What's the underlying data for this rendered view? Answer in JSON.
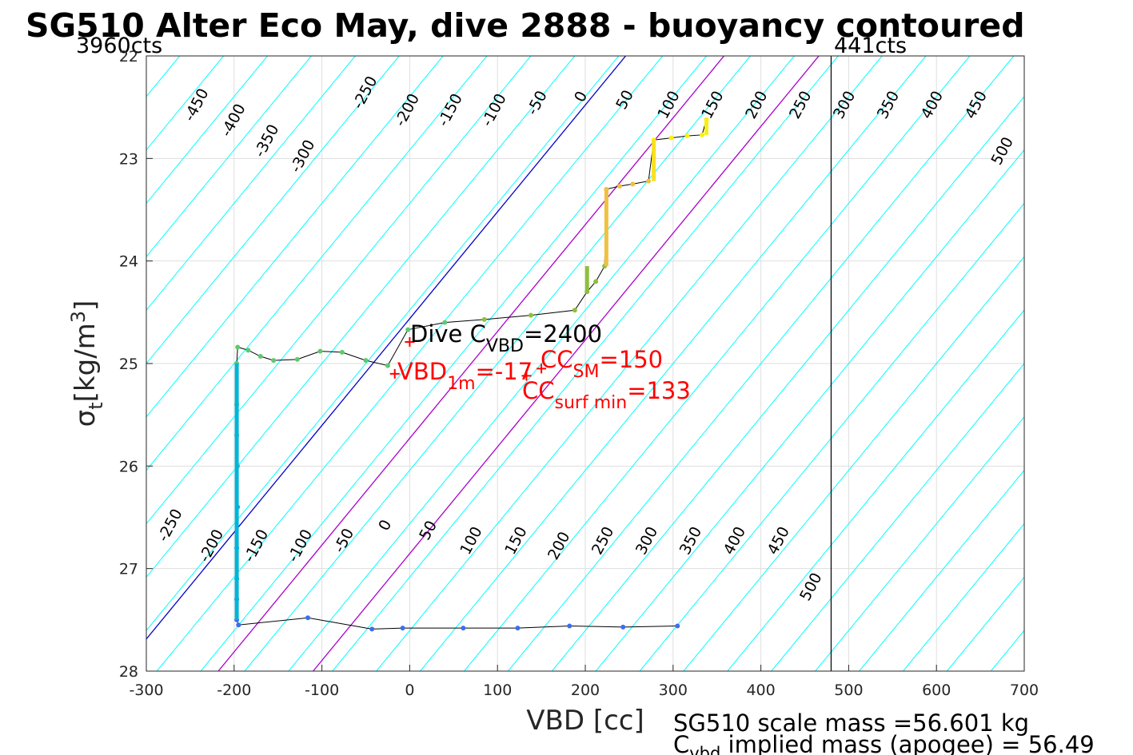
{
  "title": "SG510 Alter Eco May, dive 2888 - buoyancy contoured",
  "chart_data": {
    "type": "line",
    "xlabel": "VBD [cc]",
    "ylabel_main": "σ",
    "ylabel_sub": "t",
    "ylabel_unit_pre": "[kg/m",
    "ylabel_unit_sup": "3",
    "ylabel_unit_post": "]",
    "xlim": [
      -300,
      700
    ],
    "ylim": [
      22,
      28
    ],
    "y_reversed": true,
    "grid": true,
    "xticks": [
      -300,
      -200,
      -100,
      0,
      100,
      200,
      300,
      400,
      500,
      600,
      700
    ],
    "xtick_labels": [
      "-300",
      "-200",
      "-100",
      "0",
      "100",
      "200",
      "300",
      "400",
      "500",
      "600",
      "700"
    ],
    "yticks": [
      22,
      23,
      24,
      25,
      26,
      27,
      28
    ],
    "ytick_labels": [
      "22",
      "23",
      "24",
      "25",
      "26",
      "27",
      "28"
    ],
    "contours": {
      "slope_cc_per_sigma": -96,
      "colors": {
        "default": "#00ffff",
        "zero": "#0000cc",
        "surf_min": "#aa00cc",
        "sm": "#aa00cc"
      },
      "levels": [
        -500,
        -450,
        -400,
        -350,
        -300,
        -250,
        -200,
        -150,
        -100,
        -50,
        0,
        50,
        100,
        150,
        200,
        250,
        300,
        350,
        400,
        450,
        500
      ],
      "colored_offsets": [
        [
          0,
          "zero"
        ],
        [
          15,
          "surf_min"
        ],
        [
          116,
          "sm"
        ]
      ],
      "upper_labels": [
        {
          "text": "-450",
          "x": -238,
          "y": 22.5
        },
        {
          "text": "-400",
          "x": -196,
          "y": 22.65
        },
        {
          "text": "-350",
          "x": -158,
          "y": 22.85
        },
        {
          "text": "-300",
          "x": -117,
          "y": 23.0
        },
        {
          "text": "-250",
          "x": -46,
          "y": 22.38
        },
        {
          "text": "-200",
          "x": 2,
          "y": 22.55
        },
        {
          "text": "-150",
          "x": 51,
          "y": 22.55
        },
        {
          "text": "-100",
          "x": 101,
          "y": 22.55
        },
        {
          "text": "-50",
          "x": 150,
          "y": 22.48
        },
        {
          "text": "0",
          "x": 200,
          "y": 22.42
        },
        {
          "text": "50",
          "x": 250,
          "y": 22.45
        },
        {
          "text": "100",
          "x": 300,
          "y": 22.5
        },
        {
          "text": "150",
          "x": 350,
          "y": 22.5
        },
        {
          "text": "200",
          "x": 400,
          "y": 22.5
        },
        {
          "text": "250",
          "x": 450,
          "y": 22.5
        },
        {
          "text": "300",
          "x": 500,
          "y": 22.5
        },
        {
          "text": "350",
          "x": 550,
          "y": 22.5
        },
        {
          "text": "400",
          "x": 600,
          "y": 22.5
        },
        {
          "text": "450",
          "x": 650,
          "y": 22.5
        },
        {
          "text": "500",
          "x": 680,
          "y": 22.95
        }
      ],
      "lower_labels": [
        {
          "text": "-250",
          "x": -268,
          "y": 26.6
        },
        {
          "text": "-200",
          "x": -221,
          "y": 26.8
        },
        {
          "text": "-150",
          "x": -170,
          "y": 26.8
        },
        {
          "text": "-100",
          "x": -120,
          "y": 26.8
        },
        {
          "text": "-50",
          "x": -70,
          "y": 26.75
        },
        {
          "text": "0",
          "x": -23,
          "y": 26.6
        },
        {
          "text": "50",
          "x": 26,
          "y": 26.65
        },
        {
          "text": "100",
          "x": 75,
          "y": 26.75
        },
        {
          "text": "150",
          "x": 126,
          "y": 26.75
        },
        {
          "text": "200",
          "x": 175,
          "y": 26.8
        },
        {
          "text": "250",
          "x": 225,
          "y": 26.75
        },
        {
          "text": "300",
          "x": 275,
          "y": 26.75
        },
        {
          "text": "350",
          "x": 325,
          "y": 26.75
        },
        {
          "text": "400",
          "x": 375,
          "y": 26.75
        },
        {
          "text": "450",
          "x": 425,
          "y": 26.75
        },
        {
          "text": "500",
          "x": 462,
          "y": 27.2
        }
      ]
    },
    "dive_profile": [
      {
        "x": 305,
        "y": 27.56
      },
      {
        "x": 243,
        "y": 27.57
      },
      {
        "x": 182,
        "y": 27.56
      },
      {
        "x": 123,
        "y": 27.58
      },
      {
        "x": 61,
        "y": 27.58
      },
      {
        "x": -8,
        "y": 27.58
      },
      {
        "x": -43,
        "y": 27.59
      },
      {
        "x": -116,
        "y": 27.48
      },
      {
        "x": -195,
        "y": 27.55
      },
      {
        "x": -197,
        "y": 27.5
      },
      {
        "x": -197,
        "y": 27.3
      },
      {
        "x": -197,
        "y": 27.1
      },
      {
        "x": -197,
        "y": 26.8
      },
      {
        "x": -196,
        "y": 26.4
      },
      {
        "x": -196,
        "y": 26.0
      },
      {
        "x": -197,
        "y": 25.7
      },
      {
        "x": -197,
        "y": 25.4
      },
      {
        "x": -197,
        "y": 25.0
      },
      {
        "x": -196,
        "y": 24.84
      },
      {
        "x": -184,
        "y": 24.87
      },
      {
        "x": -170,
        "y": 24.93
      },
      {
        "x": -155,
        "y": 24.97
      },
      {
        "x": -128,
        "y": 24.96
      },
      {
        "x": -102,
        "y": 24.88
      },
      {
        "x": -77,
        "y": 24.89
      },
      {
        "x": -50,
        "y": 24.97
      },
      {
        "x": -25,
        "y": 25.02
      },
      {
        "x": -2,
        "y": 24.67
      },
      {
        "x": 40,
        "y": 24.6
      },
      {
        "x": 85,
        "y": 24.57
      },
      {
        "x": 138,
        "y": 24.53
      },
      {
        "x": 188,
        "y": 24.48
      },
      {
        "x": 202,
        "y": 24.3
      },
      {
        "x": 212,
        "y": 24.2
      },
      {
        "x": 222,
        "y": 24.05
      },
      {
        "x": 224,
        "y": 23.3
      },
      {
        "x": 239,
        "y": 23.27
      },
      {
        "x": 254,
        "y": 23.25
      },
      {
        "x": 272,
        "y": 23.22
      },
      {
        "x": 278,
        "y": 22.82
      },
      {
        "x": 298,
        "y": 22.8
      },
      {
        "x": 316,
        "y": 22.78
      },
      {
        "x": 333,
        "y": 22.77
      },
      {
        "x": 338,
        "y": 22.62
      }
    ],
    "climb_profile_colors": [
      "#3b6ef0",
      "#00b4d8",
      "#3cc8a0",
      "#5fc870",
      "#8fbe3c",
      "#f0c040",
      "#f8f010"
    ],
    "markers": [
      {
        "x": 0,
        "y": 24.79,
        "color": "#ff0000"
      },
      {
        "x": -17,
        "y": 25.1,
        "color": "#ff0000"
      },
      {
        "x": 150,
        "y": 25.05,
        "color": "#ff0000"
      },
      {
        "x": 133,
        "y": 25.12,
        "color": "#ff0000"
      }
    ],
    "vertical_line_x": 480,
    "annotations": {
      "dive_cvbd_main": "Dive C",
      "dive_cvbd_sub": "VBD",
      "dive_cvbd_val": "=2400",
      "vbd1m_main": "VBD",
      "vbd1m_sub": "1m",
      "vbd1m_val": "=-17",
      "ccsm_main": "CC",
      "ccsm_sub": "SM",
      "ccsm_val": "=150",
      "ccsurf_main": "CC",
      "ccsurf_sub": "surf min",
      "ccsurf_val": "=133"
    },
    "counts_left": "3960cts",
    "counts_right": "441cts"
  },
  "footer": {
    "scale_mass": "SG510 scale mass =56.601 kg",
    "cvbd_main": "C",
    "cvbd_sub": "vbd",
    "cvbd_rest": " implied mass (apogee) = 56.49"
  }
}
